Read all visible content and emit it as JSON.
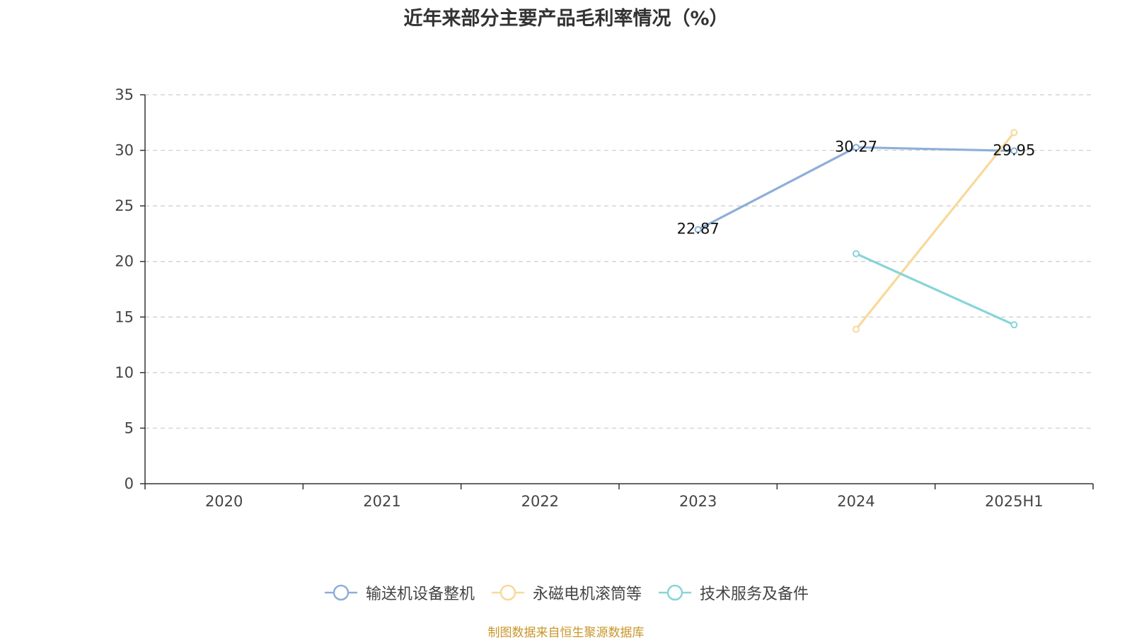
{
  "title": "近年来部分主要产品毛利率情况（%）",
  "source_note": "制图数据来自恒生聚源数据库",
  "chart_data": {
    "type": "line",
    "title": "近年来部分主要产品毛利率情况（%）",
    "xlabel": "",
    "ylabel": "",
    "categories": [
      "2020",
      "2021",
      "2022",
      "2023",
      "2024",
      "2025H1"
    ],
    "ylim": [
      0,
      35
    ],
    "yticks": [
      0,
      5,
      10,
      15,
      20,
      25,
      30,
      35
    ],
    "grid": true,
    "legend_position": "bottom",
    "series": [
      {
        "name": "输送机设备整机",
        "color": "#8eaed8",
        "values": [
          null,
          null,
          null,
          22.87,
          30.27,
          29.95
        ],
        "labels": [
          null,
          null,
          null,
          "22.87",
          "30.27",
          "29.95"
        ]
      },
      {
        "name": "永磁电机滚筒等",
        "color": "#f8d99a",
        "values": [
          null,
          null,
          null,
          null,
          13.9,
          31.6
        ],
        "labels": [
          null,
          null,
          null,
          null,
          null,
          null
        ]
      },
      {
        "name": "技术服务及备件",
        "color": "#86d5d8",
        "values": [
          null,
          null,
          null,
          null,
          20.7,
          14.3
        ],
        "labels": [
          null,
          null,
          null,
          null,
          null,
          null
        ]
      }
    ]
  }
}
